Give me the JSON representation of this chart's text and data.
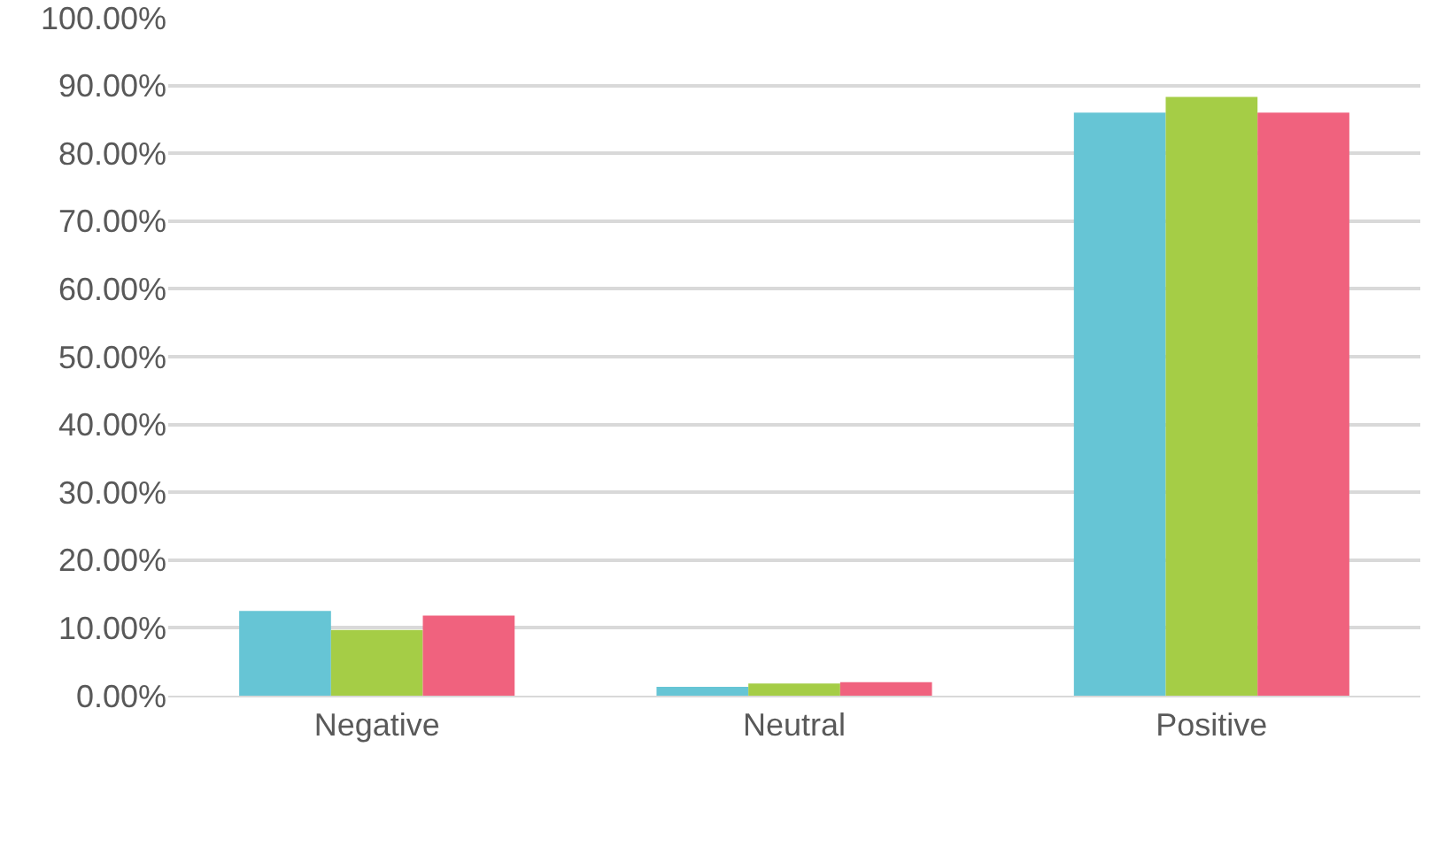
{
  "chart_data": {
    "type": "bar",
    "categories": [
      "Negative",
      "Neutral",
      "Positive"
    ],
    "series": [
      {
        "color": "#66c5d5",
        "values": [
          12.5,
          1.3,
          86.0
        ]
      },
      {
        "color": "#a5cd46",
        "values": [
          9.7,
          1.8,
          88.3
        ]
      },
      {
        "color": "#f0627e",
        "values": [
          11.8,
          2.0,
          86.0
        ]
      }
    ],
    "ylim": [
      0,
      100
    ],
    "yticks": [
      {
        "value": 0,
        "label": "0.00%"
      },
      {
        "value": 10,
        "label": "10.00%"
      },
      {
        "value": 20,
        "label": "20.00%"
      },
      {
        "value": 30,
        "label": "30.00%"
      },
      {
        "value": 40,
        "label": "40.00%"
      },
      {
        "value": 50,
        "label": "50.00%"
      },
      {
        "value": 60,
        "label": "60.00%"
      },
      {
        "value": 70,
        "label": "70.00%"
      },
      {
        "value": 80,
        "label": "80.00%"
      },
      {
        "value": 90,
        "label": "90.00%"
      },
      {
        "value": 100,
        "label": "100.00%"
      }
    ],
    "grid": "y"
  }
}
